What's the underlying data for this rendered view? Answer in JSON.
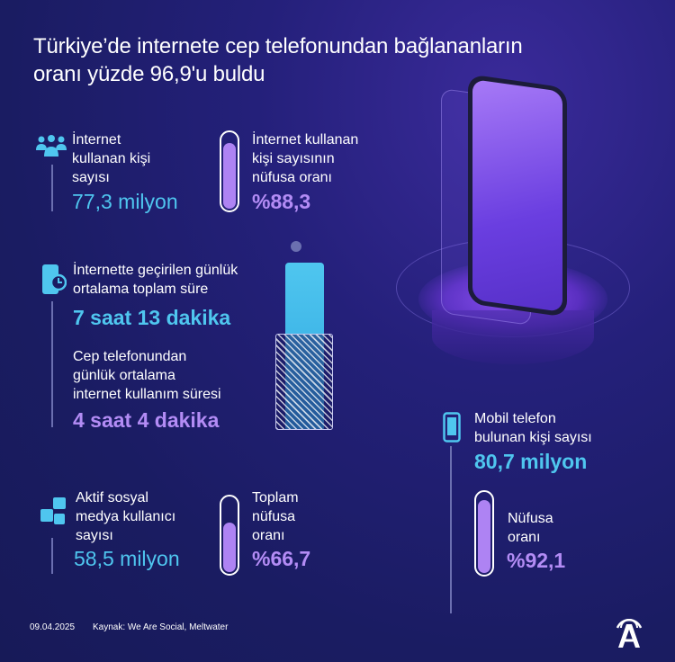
{
  "title": {
    "line1": "Türkiye’de internete cep telefonundan bağlananların",
    "line2": "oranı yüzde 96,9'u buldu"
  },
  "internet_users": {
    "label_lines": [
      "İnternet",
      "kullanan kişi",
      "sayısı"
    ],
    "value": "77,3 milyon",
    "icon": "people-icon"
  },
  "internet_ratio": {
    "label_lines": [
      "İnternet kullanan",
      "kişi sayısının",
      "nüfusa oranı"
    ],
    "value": "%88,3",
    "percent": 88.3
  },
  "daily_time": {
    "label_lines": [
      "İnternette geçirilen günlük",
      "ortalama toplam süre"
    ],
    "value": "7 saat 13 dakika",
    "icon": "phone-clock-icon"
  },
  "mobile_time": {
    "label_lines": [
      "Cep telefonundan",
      "günlük ortalama",
      "internet kullanım süresi"
    ],
    "value": "4 saat 4 dakika"
  },
  "social": {
    "label_lines": [
      "Aktif sosyal",
      "medya kullanıcı",
      "sayısı"
    ],
    "value": "58,5 milyon",
    "icon": "social-media-icon"
  },
  "social_ratio": {
    "label_lines": [
      "Toplam",
      "nüfusa",
      "oranı"
    ],
    "value": "%66,7",
    "percent": 66.7
  },
  "mobile_owners": {
    "label_lines": [
      "Mobil telefon",
      "bulunan kişi sayısı"
    ],
    "value": "80,7 milyon",
    "icon": "mobile-phone-icon"
  },
  "mobile_ratio": {
    "label_lines": [
      "Nüfusa",
      "oranı"
    ],
    "value": "%92,1",
    "percent": 92.1
  },
  "footer": {
    "date": "09.04.2025",
    "source": "Kaynak: We Are Social, Meltwater",
    "logo": "AA"
  },
  "colors": {
    "cyan": "#4fc6ef",
    "purple": "#b38cf5",
    "bg": "#1a1c62"
  }
}
